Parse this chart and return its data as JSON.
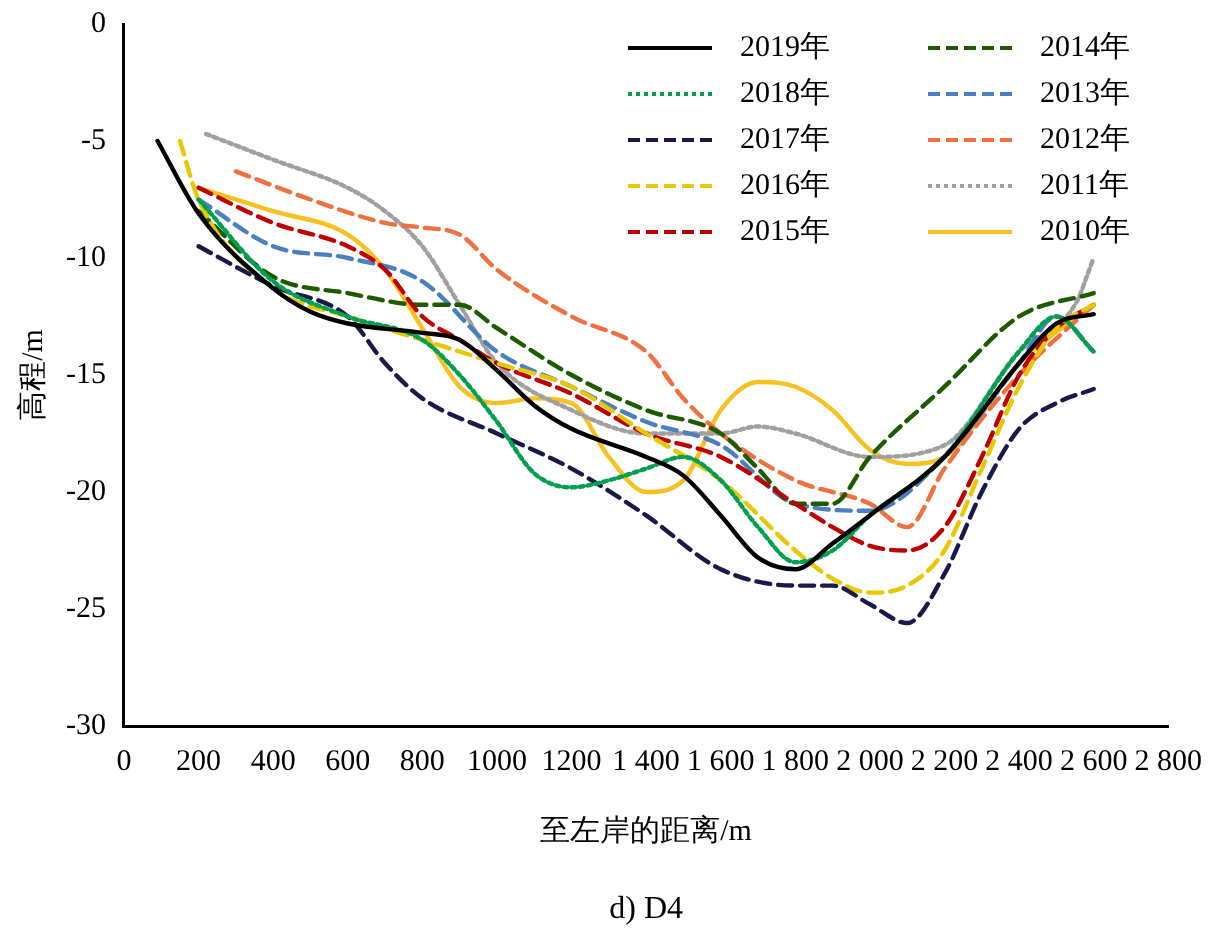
{
  "chart_data": {
    "type": "line",
    "xlabel": "至左岸的距离/m",
    "ylabel": "高程/m",
    "annotations": [
      "d) D4"
    ],
    "xlim": [
      0,
      2800
    ],
    "ylim": [
      -30,
      0
    ],
    "xticks": [
      0,
      200,
      400,
      600,
      800,
      1000,
      1200,
      {
        "value": 1400,
        "label": "1 400"
      },
      {
        "value": 1600,
        "label": "1 600"
      },
      {
        "value": 1800,
        "label": "1 800"
      },
      {
        "value": 2000,
        "label": "2 000"
      },
      {
        "value": 2200,
        "label": "2 200"
      },
      {
        "value": 2400,
        "label": "2 400"
      },
      {
        "value": 2600,
        "label": "2 600"
      },
      {
        "value": 2800,
        "label": "2 800"
      }
    ],
    "yticks": [
      -30,
      -25,
      -20,
      -15,
      -10,
      -5,
      0
    ],
    "grid": false,
    "legend": "top right",
    "marker": "none",
    "series": [
      {
        "name": "2019年",
        "color": "#000000",
        "line_style": "solid",
        "x": [
          90,
          200,
          400,
          500,
          600,
          800,
          900,
          1000,
          1100,
          1200,
          1400,
          1500,
          1600,
          1700,
          1800,
          1900,
          2000,
          2200,
          2400,
          2500,
          2600
        ],
        "values": [
          -5,
          -8.1,
          -11.3,
          -12.3,
          -12.8,
          -13.2,
          -13.5,
          -14.8,
          -16.3,
          -17.3,
          -18.5,
          -19.3,
          -21,
          -22.8,
          -23.3,
          -22.2,
          -21,
          -18.5,
          -14.5,
          -12.8,
          -12.4
        ]
      },
      {
        "name": "2018年",
        "color": "#00a050",
        "line_style": "dotted",
        "x": [
          200,
          400,
          600,
          800,
          900,
          1000,
          1100,
          1200,
          1300,
          1400,
          1500,
          1600,
          1700,
          1800,
          1900,
          2000,
          2200,
          2400,
          2500,
          2600
        ],
        "values": [
          -7.5,
          -11,
          -12.5,
          -13.5,
          -15,
          -17,
          -19.2,
          -19.8,
          -19.5,
          -19,
          -18.5,
          -19.5,
          -21.5,
          -23,
          -22.5,
          -21,
          -18.5,
          -14,
          -12.5,
          -14
        ]
      },
      {
        "name": "2017年",
        "color": "#1a1a4a",
        "line_style": "dashed",
        "x": [
          200,
          400,
          600,
          700,
          800,
          1000,
          1200,
          1400,
          1600,
          1800,
          1900,
          2000,
          2100,
          2200,
          2300,
          2400,
          2500,
          2600
        ],
        "values": [
          -9.5,
          -11.2,
          -12.5,
          -14.5,
          -16,
          -17.5,
          -19,
          -21,
          -23.3,
          -24,
          -24,
          -24.8,
          -25.6,
          -23.5,
          -20,
          -17.3,
          -16.2,
          -15.6
        ]
      },
      {
        "name": "2016年",
        "color": "#e8c800",
        "line_style": "dashed",
        "x": [
          150,
          200,
          400,
          600,
          800,
          1000,
          1200,
          1400,
          1600,
          1800,
          1900,
          2000,
          2100,
          2200,
          2300,
          2400,
          2500,
          2600
        ],
        "values": [
          -5,
          -7.5,
          -11.3,
          -12.5,
          -13.5,
          -14.5,
          -15.5,
          -17.5,
          -19.5,
          -22.5,
          -23.7,
          -24.3,
          -24,
          -22.5,
          -19,
          -15.5,
          -13,
          -12
        ]
      },
      {
        "name": "2015年",
        "color": "#c00000",
        "line_style": "dashed",
        "x": [
          200,
          400,
          600,
          700,
          800,
          900,
          1000,
          1200,
          1400,
          1600,
          1800,
          1900,
          2000,
          2100,
          2200,
          2300,
          2400,
          2500,
          2600
        ],
        "values": [
          -7,
          -8.5,
          -9.5,
          -10.5,
          -12.5,
          -13.5,
          -14.5,
          -15.8,
          -17.5,
          -18.5,
          -20.5,
          -21.5,
          -22.3,
          -22.5,
          -21.5,
          -18.5,
          -15,
          -13,
          -12
        ]
      },
      {
        "name": "2014年",
        "color": "#1e5a00",
        "line_style": "dashed",
        "x": [
          200,
          400,
          600,
          800,
          900,
          1000,
          1200,
          1400,
          1600,
          1700,
          1800,
          1900,
          2000,
          2200,
          2400,
          2600
        ],
        "values": [
          -8,
          -10.8,
          -11.5,
          -12,
          -12,
          -13,
          -15,
          -16.5,
          -17.5,
          -19,
          -20.5,
          -20.5,
          -18.5,
          -15.5,
          -12.5,
          -11.5
        ]
      },
      {
        "name": "2013年",
        "color": "#4a80c0",
        "line_style": "dashed",
        "x": [
          200,
          400,
          600,
          800,
          1000,
          1200,
          1400,
          1600,
          1800,
          2000,
          2200,
          2400,
          2500,
          2600
        ],
        "values": [
          -7.5,
          -9.5,
          -10,
          -11,
          -14,
          -15.5,
          -17,
          -18,
          -20.5,
          -20.8,
          -18.5,
          -14.5,
          -12.5,
          -14
        ]
      },
      {
        "name": "2012年",
        "color": "#f07040",
        "line_style": "dashed",
        "x": [
          300,
          500,
          700,
          800,
          900,
          1000,
          1200,
          1400,
          1500,
          1600,
          1800,
          2000,
          2100,
          2200,
          2400,
          2600
        ],
        "values": [
          -6.3,
          -7.5,
          -8.5,
          -8.7,
          -9,
          -10.5,
          -12.5,
          -14,
          -16,
          -17.5,
          -19.5,
          -20.5,
          -21.5,
          -19,
          -15,
          -12
        ]
      },
      {
        "name": "2011年",
        "color": "#a0a0a0",
        "line_style": "dotted",
        "x": [
          220,
          400,
          600,
          700,
          800,
          900,
          1000,
          1200,
          1400,
          1600,
          1700,
          1800,
          2000,
          2200,
          2400,
          2550,
          2600
        ],
        "values": [
          -4.7,
          -5.8,
          -7,
          -8,
          -9.5,
          -12,
          -14.5,
          -16.5,
          -17.5,
          -17.5,
          -17.2,
          -17.5,
          -18.5,
          -18,
          -14,
          -12,
          -10
        ]
      },
      {
        "name": "2010年",
        "color": "#f8c020",
        "line_style": "solid",
        "x": [
          200,
          400,
          600,
          700,
          800,
          900,
          1000,
          1100,
          1200,
          1300,
          1400,
          1500,
          1600,
          1700,
          1800,
          1900,
          2000,
          2100,
          2200,
          2400,
          2600
        ],
        "values": [
          -7,
          -8,
          -9,
          -10.5,
          -13,
          -15.5,
          -16.2,
          -16,
          -16.2,
          -18.5,
          -20,
          -19.5,
          -16.5,
          -15.3,
          -15.5,
          -16.5,
          -18.2,
          -18.8,
          -18.5,
          -14.5,
          -12
        ]
      }
    ]
  }
}
